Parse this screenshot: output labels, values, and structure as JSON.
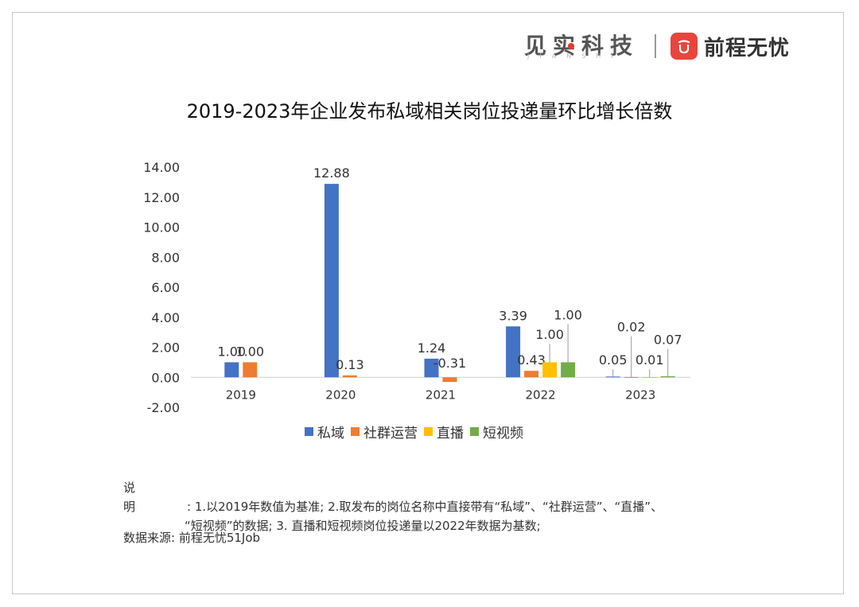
{
  "brand": {
    "jianshi": "见实科技",
    "jianshi_sub": "JIANSHI",
    "qiancheng": "前程无忧"
  },
  "chart_data": {
    "type": "bar",
    "title": "2019-2023年企业发布私域相关岗位投递量环比增长倍数",
    "categories": [
      "2019",
      "2020",
      "2021",
      "2022",
      "2023"
    ],
    "ylim": [
      -2,
      14
    ],
    "yticks": [
      "14.00",
      "12.00",
      "10.00",
      "8.00",
      "6.00",
      "4.00",
      "2.00",
      "0.00",
      "-2.00"
    ],
    "ytick_values": [
      14,
      12,
      10,
      8,
      6,
      4,
      2,
      0,
      -2
    ],
    "grid": false,
    "legend_position": "bottom",
    "series": [
      {
        "name": "私域",
        "color": "#4472c4",
        "values": [
          1.0,
          12.88,
          1.24,
          3.39,
          0.05
        ],
        "labels": [
          "1.00",
          "12.88",
          "1.24",
          "3.39",
          "0.05"
        ]
      },
      {
        "name": "社群运营",
        "color": "#ed7d31",
        "values": [
          1.0,
          0.13,
          -0.31,
          0.43,
          0.02
        ],
        "labels": [
          "1.00",
          "0.13",
          "-0.31",
          "0.43",
          "0.02"
        ]
      },
      {
        "name": "直播",
        "color": "#ffc000",
        "values": [
          null,
          null,
          null,
          1.0,
          0.01
        ],
        "labels": [
          "",
          "",
          "",
          "1.00",
          "0.01"
        ]
      },
      {
        "name": "短视频",
        "color": "#70ad47",
        "values": [
          null,
          null,
          null,
          1.0,
          0.07
        ],
        "labels": [
          "",
          "",
          "",
          "1.00",
          "0.07"
        ]
      }
    ]
  },
  "note": {
    "label": "说明",
    "line1": ": 1.以2019年数值为基准; 2.取发布的岗位名称中直接带有“私域”、“社群运营”、“直播”、",
    "line2": "“短视频”的数据; 3. 直播和短视频岗位投递量以2022年数据为基数;"
  },
  "source": "数据来源: 前程无忧51Job"
}
